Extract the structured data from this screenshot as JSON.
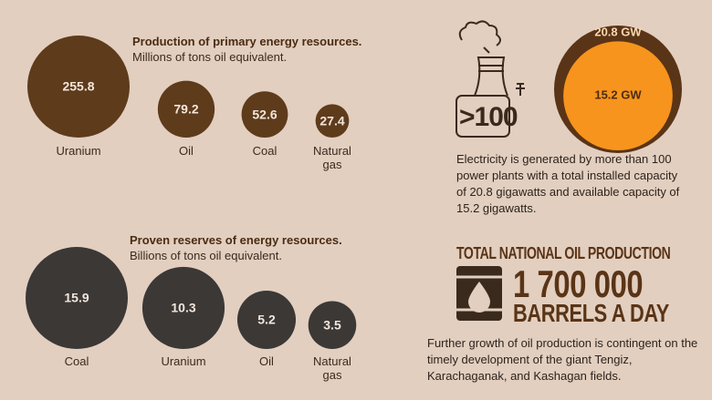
{
  "chart_data": [
    {
      "type": "bubble",
      "title": "Production of primary energy resources.",
      "subtitle": "Millions of tons oil equivalent.",
      "categories": [
        "Uranium",
        "Oil",
        "Coal",
        "Natural gas"
      ],
      "values": [
        255.8,
        79.2,
        52.6,
        27.4
      ],
      "color": "#5e3b1b"
    },
    {
      "type": "bubble",
      "title": "Proven reserves of energy resources.",
      "subtitle": "Billions of tons oil equivalent.",
      "categories": [
        "Coal",
        "Uranium",
        "Oil",
        "Natural gas"
      ],
      "values": [
        15.9,
        10.3,
        5.2,
        3.5
      ],
      "color": "#3b3836"
    },
    {
      "type": "nested-bubble",
      "values": [
        20.8,
        15.2
      ],
      "value_labels": [
        "20.8 GW",
        "15.2 GW"
      ],
      "colors": [
        "#5a3416",
        "#f7941d"
      ]
    }
  ],
  "electricity": {
    "plant_label": ">100",
    "text": "Electricity is generated by more than 100 power plants with a total installed capacity of 20.8 gigawatts and available capacity of 15.2 gigawatts."
  },
  "oil": {
    "heading": "TOTAL NATIONAL OIL PRODUCTION",
    "figure": "1 700 000",
    "unit": "BARRELS A DAY",
    "text": "Further growth of oil production is contingent on the timely development of the giant Tengiz, Karachaganak, and Kashagan fields."
  }
}
